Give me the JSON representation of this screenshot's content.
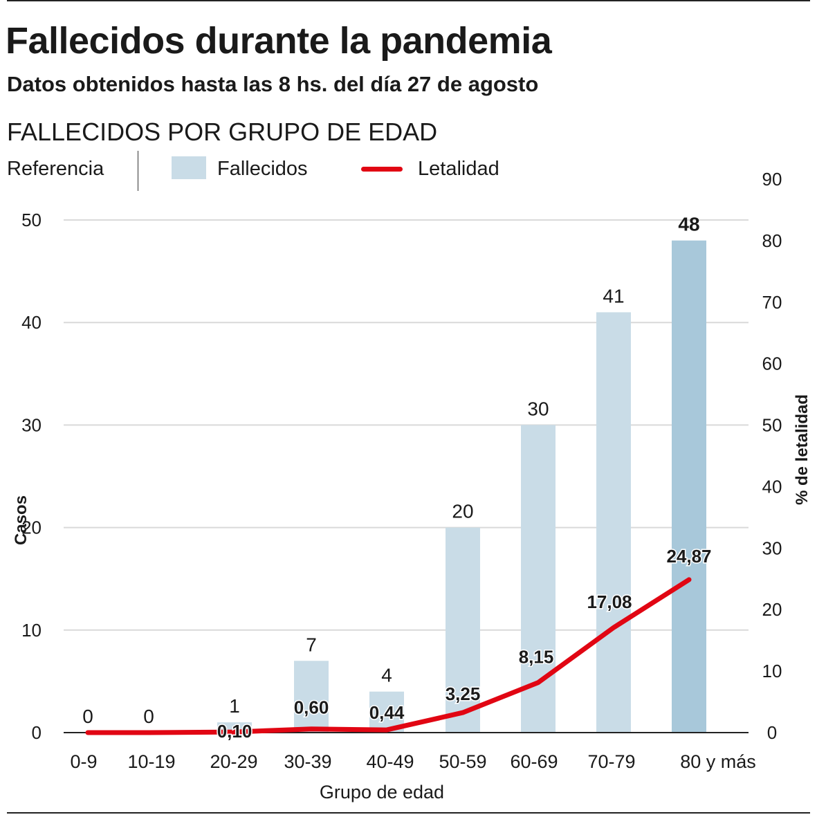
{
  "header": {
    "title": "Fallecidos durante la pandemia",
    "subtitle": "Datos obtenidos hasta las 8 hs. del día 27 de agosto",
    "section": "FALLECIDOS POR GRUPO DE EDAD"
  },
  "legend": {
    "title": "Referencia",
    "bar_label": "Fallecidos",
    "line_label": "Letalidad"
  },
  "colors": {
    "bar": "#c9dce7",
    "bar_highlight": "#a8c8da",
    "line": "#e10613",
    "grid": "#d9d9d9"
  },
  "chart_data": {
    "type": "bar",
    "title": "FALLECIDOS POR GRUPO DE EDAD",
    "xlabel": "Grupo de edad",
    "ylabel": "Casos",
    "y2label": "% de letalidad",
    "ylim": [
      0,
      50
    ],
    "y2lim": [
      0,
      90
    ],
    "yticks": [
      0,
      10,
      20,
      30,
      40,
      50
    ],
    "y2ticks": [
      0,
      10,
      20,
      30,
      40,
      50,
      60,
      70,
      80,
      90
    ],
    "grid": true,
    "categories": [
      "0-9",
      "10-19",
      "20-29",
      "30-39",
      "40-49",
      "50-59",
      "60-69",
      "70-79",
      "80 y más"
    ],
    "series": [
      {
        "name": "Fallecidos",
        "type": "bar",
        "axis": "left",
        "values": [
          0,
          0,
          1,
          7,
          4,
          20,
          30,
          41,
          48
        ],
        "labels": [
          "0",
          "0",
          "1",
          "7",
          "4",
          "20",
          "30",
          "41",
          "48"
        ]
      },
      {
        "name": "Letalidad",
        "type": "line",
        "axis": "right",
        "values": [
          0,
          0,
          0.1,
          0.6,
          0.44,
          3.25,
          8.15,
          17.08,
          24.87
        ],
        "labels": [
          "",
          "",
          "0,10",
          "0,60",
          "0,44",
          "3,25",
          "8,15",
          "17,08",
          "24,87"
        ]
      }
    ]
  }
}
